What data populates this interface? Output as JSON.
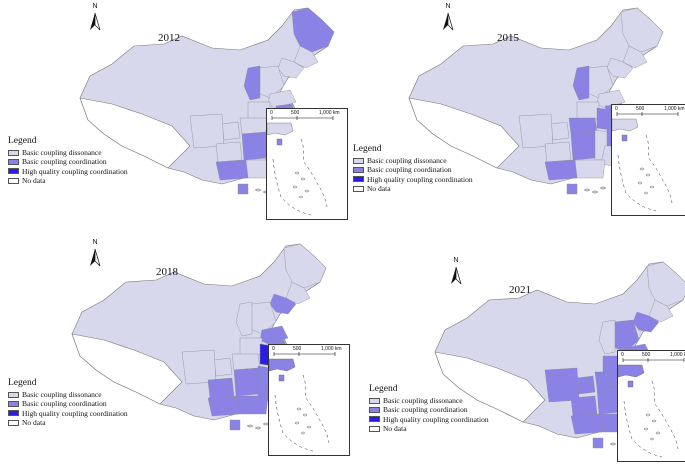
{
  "legend": {
    "title": "Legend",
    "items": [
      {
        "label": "Basic coupling dissonance",
        "color": "#d8d8ec"
      },
      {
        "label": "Basic coupling coordination",
        "color": "#8a82e4"
      },
      {
        "label": "High quality coupling coordination",
        "color": "#2a1fe0"
      },
      {
        "label": "No data",
        "color": "#ffffff"
      }
    ]
  },
  "north_label": "N",
  "scale": {
    "zero": "0",
    "mid": "500",
    "max": "1,000 km"
  },
  "maps": [
    {
      "year": "2012",
      "coordination_regions": [
        "Heilongjiang",
        "Shanxi",
        "Jiangsu",
        "Shanghai",
        "Zhejiang",
        "Hunan",
        "Guangxi",
        "Hainan"
      ],
      "high_quality_regions": []
    },
    {
      "year": "2015",
      "coordination_regions": [
        "Shanxi",
        "Anhui",
        "Jiangsu",
        "Hubei",
        "Hunan",
        "Zhejiang",
        "Guangxi",
        "Hainan"
      ],
      "high_quality_regions": []
    },
    {
      "year": "2018",
      "coordination_regions": [
        "Liaoning",
        "Beijing",
        "Tianjin",
        "Shandong",
        "Jiangsu",
        "Guizhou",
        "Hunan",
        "Jiangxi",
        "Zhejiang",
        "Fujian",
        "Guangdong",
        "Guangxi",
        "Hainan",
        "Taiwan"
      ],
      "high_quality_regions": [
        "Shanghai",
        "Anhui"
      ]
    },
    {
      "year": "2021",
      "coordination_regions": [
        "Liaoning",
        "Hebei",
        "Shandong",
        "Henan",
        "Hubei",
        "Sichuan",
        "Chongqing",
        "Guizhou",
        "Hunan",
        "Jiangxi",
        "Zhejiang",
        "Fujian",
        "Guangdong",
        "Guangxi",
        "Hainan",
        "Taiwan"
      ],
      "high_quality_regions": [
        "Beijing",
        "Jiangsu",
        "Shanghai"
      ]
    }
  ]
}
